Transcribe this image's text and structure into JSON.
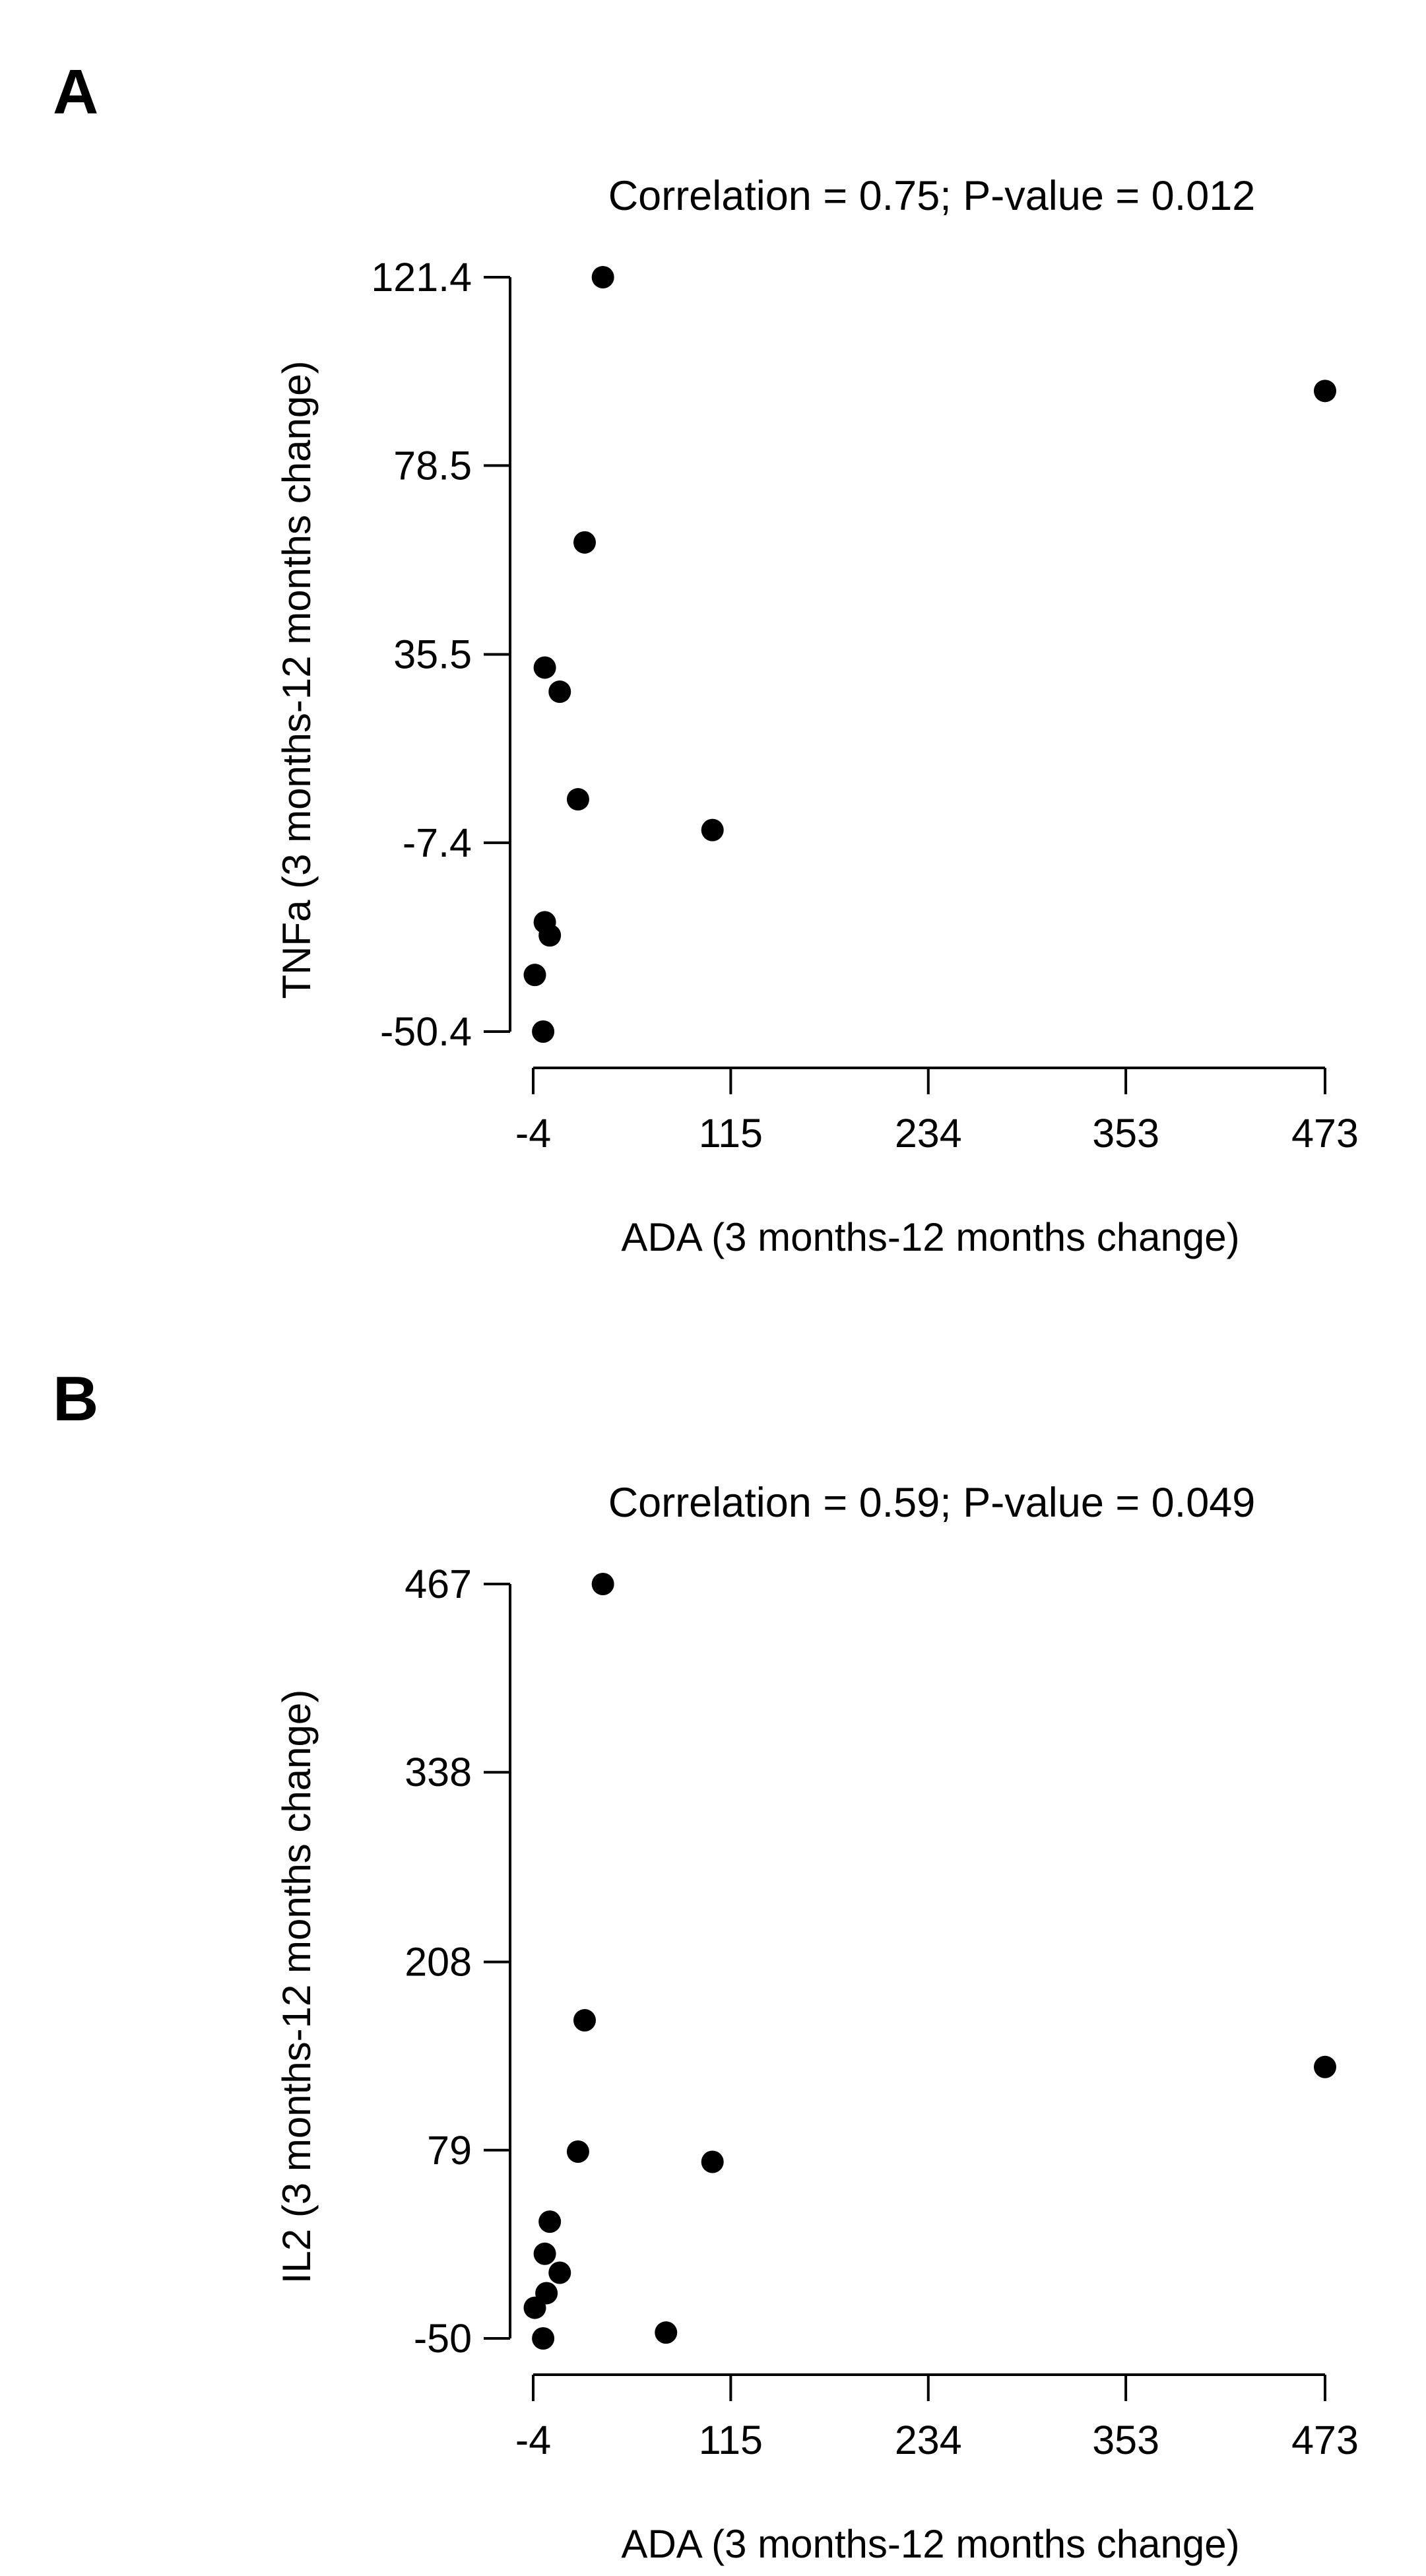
{
  "colors": {
    "background": "#ffffff",
    "ink": "#000000"
  },
  "chart_data": [
    {
      "type": "scatter",
      "panel_label": "A",
      "title": "Correlation = 0.75; P-value = 0.012",
      "xlabel": "ADA (3 months-12 months change)",
      "ylabel": "TNFa (3 months-12 months change)",
      "xlim": [
        -4,
        473
      ],
      "ylim": [
        -50.4,
        121.4
      ],
      "xticks": [
        -4,
        115,
        234,
        353,
        473
      ],
      "xtick_labels": [
        "-4",
        "115",
        "234",
        "353",
        "473"
      ],
      "yticks": [
        -50.4,
        -7.4,
        35.5,
        78.5,
        121.4
      ],
      "ytick_labels": [
        "-50.4",
        "-7.4",
        "35.5",
        "78.5",
        "121.4"
      ],
      "points": [
        {
          "x": 38,
          "y": 121.4
        },
        {
          "x": 473,
          "y": 95.5
        },
        {
          "x": 27,
          "y": 61.0
        },
        {
          "x": 3,
          "y": 32.5
        },
        {
          "x": 12,
          "y": 27.0
        },
        {
          "x": 23,
          "y": 2.5
        },
        {
          "x": 104,
          "y": -4.5
        },
        {
          "x": 3,
          "y": -25.5
        },
        {
          "x": 6,
          "y": -28.5
        },
        {
          "x": -3,
          "y": -37.5
        },
        {
          "x": 2,
          "y": -50.4
        }
      ]
    },
    {
      "type": "scatter",
      "panel_label": "B",
      "title": "Correlation = 0.59; P-value = 0.049",
      "xlabel": "ADA (3 months-12 months change)",
      "ylabel": "IL2 (3 months-12 months change)",
      "xlim": [
        -4,
        473
      ],
      "ylim": [
        -50,
        467
      ],
      "xticks": [
        -4,
        115,
        234,
        353,
        473
      ],
      "xtick_labels": [
        "-4",
        "115",
        "234",
        "353",
        "473"
      ],
      "yticks": [
        -50,
        79,
        208,
        338,
        467
      ],
      "ytick_labels": [
        "-50",
        "79",
        "208",
        "338",
        "467"
      ],
      "points": [
        {
          "x": 38,
          "y": 467
        },
        {
          "x": 27,
          "y": 168
        },
        {
          "x": 473,
          "y": 136
        },
        {
          "x": 23,
          "y": 78
        },
        {
          "x": 104,
          "y": 71
        },
        {
          "x": 6,
          "y": 30
        },
        {
          "x": 3,
          "y": 8
        },
        {
          "x": 12,
          "y": -5
        },
        {
          "x": 4,
          "y": -19
        },
        {
          "x": -3,
          "y": -29
        },
        {
          "x": 2,
          "y": -50
        },
        {
          "x": 76,
          "y": -46
        }
      ]
    }
  ]
}
